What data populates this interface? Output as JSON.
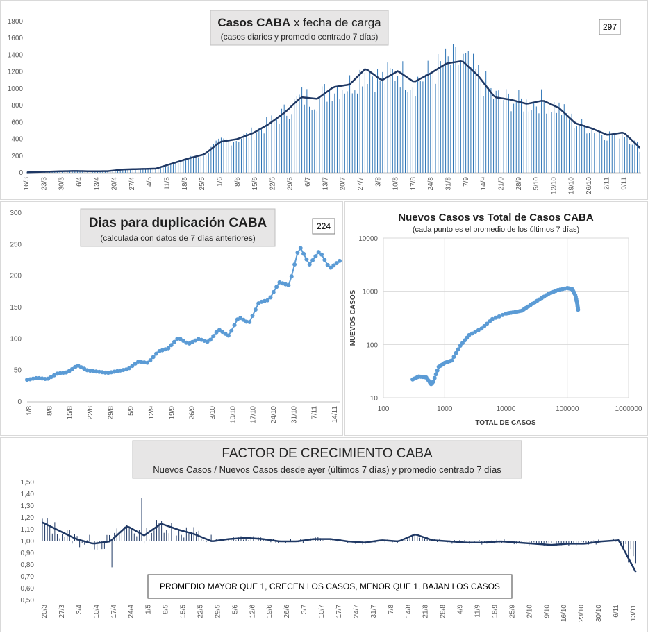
{
  "chart_data": [
    {
      "id": "casos",
      "type": "bar+line",
      "title_bold": "Casos  CABA",
      "title_rest": " x fecha  de carga",
      "subtitle": "(casos diarios y promedio centrado 7 días)",
      "badge": "297",
      "ylim": [
        0,
        1800
      ],
      "yticks": [
        "0",
        "200",
        "400",
        "600",
        "800",
        "1000",
        "1200",
        "1400",
        "1600",
        "1800"
      ],
      "xticks": [
        "16/3",
        "23/3",
        "30/3",
        "6/4",
        "13/4",
        "20/4",
        "27/4",
        "4/5",
        "11/5",
        "18/5",
        "25/5",
        "1/6",
        "8/6",
        "15/6",
        "22/6",
        "29/6",
        "6/7",
        "13/7",
        "20/7",
        "27/7",
        "3/8",
        "10/8",
        "17/8",
        "24/8",
        "31/8",
        "7/9",
        "14/9",
        "21/9",
        "28/9",
        "5/10",
        "12/10",
        "19/10",
        "26/10",
        "2/11",
        "9/11"
      ],
      "series_avg_weekly": [
        5,
        12,
        18,
        22,
        18,
        20,
        40,
        45,
        50,
        110,
        170,
        220,
        370,
        400,
        470,
        580,
        720,
        900,
        880,
        1020,
        1050,
        1240,
        1100,
        1210,
        1080,
        1180,
        1300,
        1330,
        1150,
        900,
        870,
        820,
        860,
        770,
        590,
        530,
        450,
        480,
        300
      ],
      "last_value": 297
    },
    {
      "id": "duplicacion",
      "type": "line",
      "title": "Dias para duplicación CABA",
      "subtitle": "(calculada con datos de 7 días anteriores)",
      "badge": "224",
      "ylim": [
        0,
        300
      ],
      "yticks": [
        "0",
        "50",
        "100",
        "150",
        "200",
        "250",
        "300"
      ],
      "xticks": [
        "1/8",
        "8/8",
        "15/8",
        "22/8",
        "29/8",
        "5/9",
        "12/9",
        "19/9",
        "26/9",
        "3/10",
        "10/10",
        "17/10",
        "24/10",
        "31/10",
        "7/11",
        "14/11"
      ],
      "values": [
        35,
        38,
        36,
        45,
        47,
        58,
        50,
        48,
        46,
        49,
        52,
        64,
        62,
        80,
        85,
        102,
        92,
        100,
        95,
        115,
        105,
        135,
        125,
        158,
        162,
        190,
        185,
        248,
        218,
        240,
        212,
        224
      ]
    },
    {
      "id": "nuevos_vs_total",
      "type": "scatter-loglog",
      "title": "Nuevos Casos vs Total de Casos CABA",
      "subtitle": "(cada punto es el promedio de los últimos 7 días)",
      "xlabel": "TOTAL DE CASOS",
      "ylabel": "NUEVOS CASOS",
      "xticks": [
        "100",
        "1000",
        "10000",
        "100000",
        "1000000"
      ],
      "yticks": [
        "10",
        "100",
        "1000",
        "10000"
      ],
      "points": [
        [
          300,
          22
        ],
        [
          380,
          25
        ],
        [
          500,
          24
        ],
        [
          600,
          18
        ],
        [
          650,
          20
        ],
        [
          800,
          38
        ],
        [
          1000,
          45
        ],
        [
          1300,
          50
        ],
        [
          1800,
          95
        ],
        [
          2500,
          150
        ],
        [
          4000,
          200
        ],
        [
          6000,
          300
        ],
        [
          10000,
          380
        ],
        [
          13000,
          400
        ],
        [
          18000,
          430
        ],
        [
          25000,
          550
        ],
        [
          35000,
          700
        ],
        [
          50000,
          900
        ],
        [
          70000,
          1050
        ],
        [
          100000,
          1150
        ],
        [
          120000,
          1100
        ],
        [
          135000,
          850
        ],
        [
          145000,
          600
        ],
        [
          150000,
          450
        ]
      ]
    },
    {
      "id": "factor",
      "type": "bar+line",
      "title": "FACTOR DE CRECIMIENTO CABA",
      "subtitle": "Nuevos Casos   / Nuevos Casos desde ayer (últimos 7 días) y promedio  centrado  7 días",
      "note": "PROMEDIO MAYOR QUE 1, CRECEN LOS CASOS, MENOR QUE 1, BAJAN LOS CASOS",
      "ylim": [
        0.5,
        1.5
      ],
      "yticks": [
        "0,50",
        "0,60",
        "0,70",
        "0,80",
        "0,90",
        "1,00",
        "1,10",
        "1,20",
        "1,30",
        "1,40",
        "1,50"
      ],
      "xticks": [
        "20/3",
        "27/3",
        "3/4",
        "10/4",
        "17/4",
        "24/4",
        "1/5",
        "8/5",
        "15/5",
        "22/5",
        "29/5",
        "5/6",
        "12/6",
        "19/6",
        "26/6",
        "3/7",
        "10/7",
        "17/7",
        "24/7",
        "31/7",
        "7/8",
        "14/8",
        "21/8",
        "28/8",
        "4/9",
        "11/9",
        "18/9",
        "25/9",
        "2/10",
        "9/10",
        "16/10",
        "23/10",
        "30/10",
        "6/11",
        "13/11"
      ],
      "series_avg_weekly": [
        1.16,
        1.09,
        1.02,
        0.98,
        1.0,
        1.13,
        1.05,
        1.15,
        1.1,
        1.06,
        1.0,
        1.02,
        1.03,
        1.02,
        1.0,
        1.0,
        1.02,
        1.02,
        1.0,
        0.99,
        1.01,
        1.0,
        1.06,
        1.01,
        1.0,
        0.99,
        0.99,
        1.0,
        0.99,
        0.98,
        0.97,
        0.98,
        0.98,
        1.0,
        1.01,
        0.74
      ]
    }
  ]
}
